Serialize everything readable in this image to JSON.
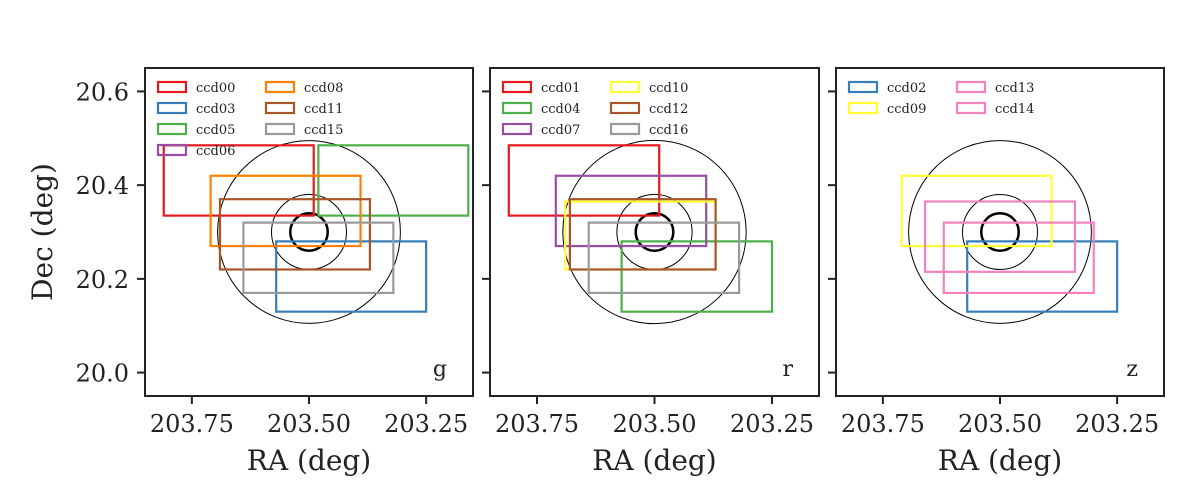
{
  "chart_data": {
    "type": "scatter",
    "ylabel": "Dec (deg)",
    "xlabel": "RA (deg)",
    "xlim": [
      203.85,
      203.15
    ],
    "ylim": [
      19.95,
      20.65
    ],
    "xticks": [
      203.75,
      203.5,
      203.25
    ],
    "xtick_labels": [
      "203.75",
      "203.50",
      "203.25"
    ],
    "yticks": [
      20.0,
      20.2,
      20.4,
      20.6
    ],
    "ytick_labels": [
      "20.0",
      "20.2",
      "20.4",
      "20.6"
    ],
    "center": [
      203.5,
      20.3
    ],
    "circle_radii_deg": [
      0.04,
      0.08,
      0.195
    ],
    "panels": [
      {
        "band": "g",
        "legend_cols": 2,
        "ccds": [
          {
            "name": "ccd00",
            "color": "#e41a1c",
            "ra": [
              203.81,
              203.49
            ],
            "dec": [
              20.335,
              20.485
            ]
          },
          {
            "name": "ccd03",
            "color": "#377eb8",
            "ra": [
              203.57,
              203.25
            ],
            "dec": [
              20.13,
              20.28
            ]
          },
          {
            "name": "ccd05",
            "color": "#4daf4a",
            "ra": [
              203.48,
              203.16
            ],
            "dec": [
              20.335,
              20.485
            ]
          },
          {
            "name": "ccd06",
            "color": "#984ea3",
            "ra": [],
            "dec": []
          },
          {
            "name": "ccd08",
            "color": "#ff7f00",
            "ra": [
              203.71,
              203.39
            ],
            "dec": [
              20.27,
              20.42
            ]
          },
          {
            "name": "ccd11",
            "color": "#a65628",
            "ra": [
              203.69,
              203.37
            ],
            "dec": [
              20.22,
              20.37
            ]
          },
          {
            "name": "ccd15",
            "color": "#999999",
            "ra": [
              203.64,
              203.32
            ],
            "dec": [
              20.17,
              20.32
            ]
          }
        ]
      },
      {
        "band": "r",
        "legend_cols": 2,
        "ccds": [
          {
            "name": "ccd01",
            "color": "#e41a1c",
            "ra": [
              203.81,
              203.49
            ],
            "dec": [
              20.335,
              20.485
            ]
          },
          {
            "name": "ccd04",
            "color": "#4daf4a",
            "ra": [
              203.57,
              203.25
            ],
            "dec": [
              20.13,
              20.28
            ]
          },
          {
            "name": "ccd07",
            "color": "#984ea3",
            "ra": [
              203.71,
              203.39
            ],
            "dec": [
              20.27,
              20.42
            ]
          },
          {
            "name": "ccd10",
            "color": "#ffff33",
            "ra": [
              203.69,
              203.37
            ],
            "dec": [
              20.22,
              20.365
            ]
          },
          {
            "name": "ccd12",
            "color": "#a65628",
            "ra": [
              203.68,
              203.37
            ],
            "dec": [
              20.22,
              20.37
            ]
          },
          {
            "name": "ccd16",
            "color": "#999999",
            "ra": [
              203.64,
              203.32
            ],
            "dec": [
              20.17,
              20.32
            ]
          }
        ]
      },
      {
        "band": "z",
        "legend_cols": 2,
        "ccds": [
          {
            "name": "ccd02",
            "color": "#377eb8",
            "ra": [
              203.57,
              203.25
            ],
            "dec": [
              20.13,
              20.28
            ]
          },
          {
            "name": "ccd09",
            "color": "#ffff33",
            "ra": [
              203.71,
              203.39
            ],
            "dec": [
              20.27,
              20.42
            ]
          },
          {
            "name": "ccd13",
            "color": "#f781bf",
            "ra": [
              203.66,
              203.34
            ],
            "dec": [
              20.215,
              20.365
            ]
          },
          {
            "name": "ccd14",
            "color": "#f781bf",
            "ra": [
              203.62,
              203.3
            ],
            "dec": [
              20.17,
              20.32
            ]
          }
        ]
      }
    ]
  }
}
